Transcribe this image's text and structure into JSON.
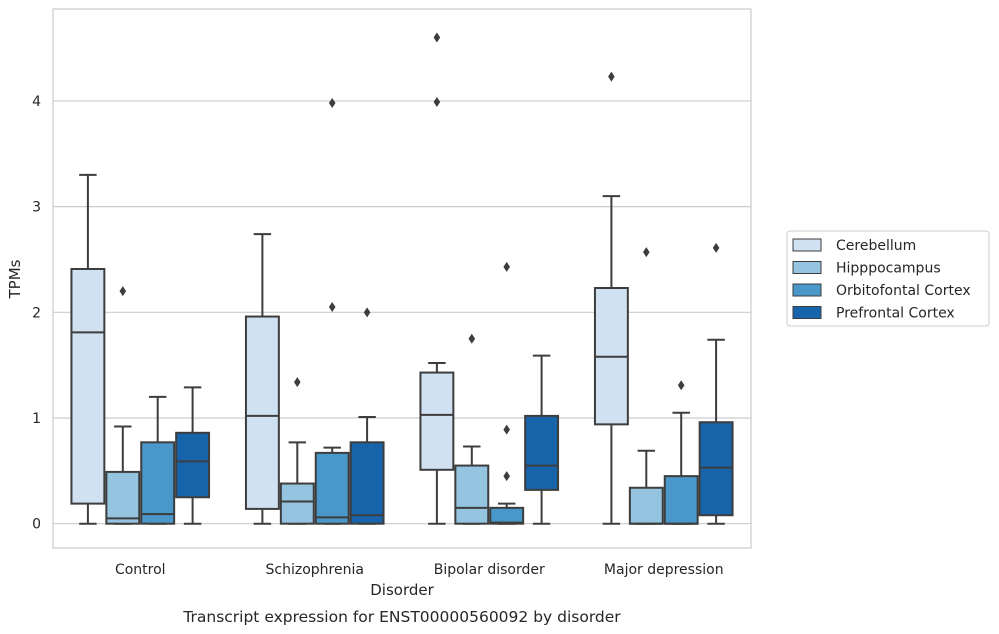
{
  "chart_data": {
    "type": "box",
    "caption": "Transcript expression for ENST00000560092 by disorder",
    "xlabel": "Disorder",
    "ylabel": "TPMs",
    "ylim": [
      -0.23,
      4.87
    ],
    "yticks": [
      0,
      1,
      2,
      3,
      4
    ],
    "grid": "horizontal",
    "legend_position": "right",
    "categories": [
      "Control",
      "Schizophrenia",
      "Bipolar disorder",
      "Major depression"
    ],
    "series": [
      {
        "name": "Cerebellum",
        "color": "#d0e1f2",
        "boxes": [
          {
            "whisker_low": 0,
            "q1": 0.19,
            "median": 1.81,
            "q3": 2.41,
            "whisker_high": 3.3,
            "outliers": []
          },
          {
            "whisker_low": 0,
            "q1": 0.14,
            "median": 1.02,
            "q3": 1.96,
            "whisker_high": 2.74,
            "outliers": []
          },
          {
            "whisker_low": 0,
            "q1": 0.51,
            "median": 1.03,
            "q3": 1.43,
            "whisker_high": 1.52,
            "outliers": [
              3.99,
              4.6
            ]
          },
          {
            "whisker_low": 0,
            "q1": 0.94,
            "median": 1.58,
            "q3": 2.23,
            "whisker_high": 3.1,
            "outliers": [
              4.23
            ]
          }
        ]
      },
      {
        "name": "Hipppocampus",
        "color": "#94c4df",
        "boxes": [
          {
            "whisker_low": 0,
            "q1": 0,
            "median": 0.05,
            "q3": 0.49,
            "whisker_high": 0.92,
            "outliers": [
              2.2
            ]
          },
          {
            "whisker_low": 0,
            "q1": 0,
            "median": 0.21,
            "q3": 0.38,
            "whisker_high": 0.77,
            "outliers": [
              1.34
            ]
          },
          {
            "whisker_low": 0,
            "q1": 0,
            "median": 0.15,
            "q3": 0.55,
            "whisker_high": 0.73,
            "outliers": [
              1.75
            ]
          },
          {
            "whisker_low": 0,
            "q1": 0,
            "median": 0,
            "q3": 0.34,
            "whisker_high": 0.69,
            "outliers": [
              2.57
            ]
          }
        ]
      },
      {
        "name": "Orbitofontal Cortex",
        "color": "#4a98c9",
        "boxes": [
          {
            "whisker_low": 0,
            "q1": 0,
            "median": 0.09,
            "q3": 0.77,
            "whisker_high": 1.2,
            "outliers": []
          },
          {
            "whisker_low": 0,
            "q1": 0,
            "median": 0.06,
            "q3": 0.67,
            "whisker_high": 0.72,
            "outliers": [
              2.05,
              3.98
            ]
          },
          {
            "whisker_low": 0,
            "q1": 0,
            "median": 0.01,
            "q3": 0.15,
            "whisker_high": 0.19,
            "outliers": [
              0.45,
              0.89,
              2.43
            ]
          },
          {
            "whisker_low": 0,
            "q1": 0,
            "median": 0,
            "q3": 0.45,
            "whisker_high": 1.05,
            "outliers": [
              1.31
            ]
          }
        ]
      },
      {
        "name": "Prefrontal Cortex",
        "color": "#1764ab",
        "boxes": [
          {
            "whisker_low": 0,
            "q1": 0.25,
            "median": 0.59,
            "q3": 0.86,
            "whisker_high": 1.29,
            "outliers": []
          },
          {
            "whisker_low": 0,
            "q1": 0,
            "median": 0.08,
            "q3": 0.77,
            "whisker_high": 1.01,
            "outliers": [
              2.0
            ]
          },
          {
            "whisker_low": 0,
            "q1": 0.32,
            "median": 0.55,
            "q3": 1.02,
            "whisker_high": 1.59,
            "outliers": []
          },
          {
            "whisker_low": 0,
            "q1": 0.08,
            "median": 0.53,
            "q3": 0.96,
            "whisker_high": 1.74,
            "outliers": [
              2.61
            ]
          }
        ]
      }
    ]
  }
}
